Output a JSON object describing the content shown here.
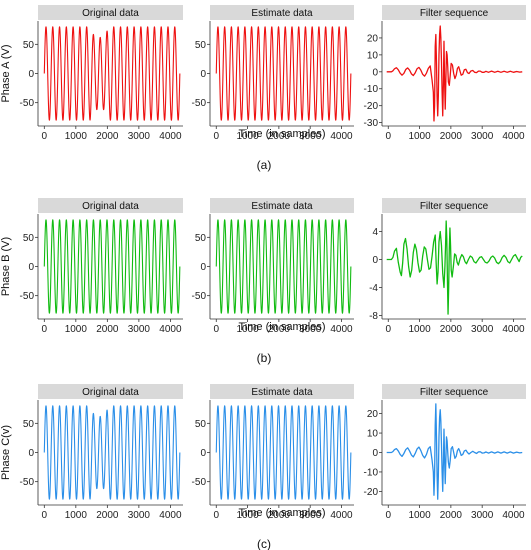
{
  "panel_titles": {
    "original": "Original data",
    "estimate": "Estimate data",
    "filter": "Filter sequence"
  },
  "x_axis": {
    "label": "Time  (in samples)",
    "ticks": [
      0,
      1000,
      2000,
      3000,
      4000
    ],
    "xlim": [
      -200,
      4400
    ]
  },
  "colors": {
    "phase_a": "#ee1111",
    "phase_b": "#11bb11",
    "phase_c": "#2b8fe8",
    "strip": "#d9d9d9"
  },
  "rows": [
    {
      "id": "a",
      "caption": "(a)",
      "ylabel": "Phase A (V)",
      "color_key": "phase_a"
    },
    {
      "id": "b",
      "caption": "(b)",
      "ylabel": "Phase B (V)",
      "color_key": "phase_b"
    },
    {
      "id": "c",
      "caption": "(c)",
      "ylabel": "Phase C(v)",
      "color_key": "phase_c"
    }
  ],
  "chart_data": [
    {
      "row": "a",
      "panel": "original",
      "type": "line",
      "title": "Original data",
      "xlabel": "",
      "ylabel": "Phase A (V)",
      "xlim": [
        -200,
        4400
      ],
      "ylim": [
        -90,
        90
      ],
      "yticks": [
        -50,
        0,
        50
      ],
      "signal": {
        "amplitude": 80,
        "cycles": 20,
        "samples": 4300,
        "dip": {
          "start": 1450,
          "end": 2050,
          "amplitude": 62
        }
      }
    },
    {
      "row": "a",
      "panel": "estimate",
      "type": "line",
      "title": "Estimate data",
      "xlabel": "Time  (in samples)",
      "ylabel": "",
      "xlim": [
        -200,
        4400
      ],
      "ylim": [
        -90,
        90
      ],
      "yticks": [
        -50,
        0,
        50
      ],
      "signal": {
        "amplitude": 80,
        "cycles": 20,
        "samples": 4300
      }
    },
    {
      "row": "a",
      "panel": "filter",
      "type": "line",
      "title": "Filter sequence",
      "xlabel": "",
      "ylabel": "",
      "xlim": [
        -200,
        4400
      ],
      "ylim": [
        -32,
        30
      ],
      "yticks": [
        -30,
        -20,
        -10,
        0,
        10,
        20
      ],
      "points": [
        [
          -50,
          0
        ],
        [
          100,
          0
        ],
        [
          150,
          0.6
        ],
        [
          200,
          1.8
        ],
        [
          260,
          2.4
        ],
        [
          320,
          1.2
        ],
        [
          380,
          -0.8
        ],
        [
          440,
          -2
        ],
        [
          500,
          -0.9
        ],
        [
          560,
          1.4
        ],
        [
          620,
          2.3
        ],
        [
          680,
          1
        ],
        [
          740,
          -1.2
        ],
        [
          800,
          -2.2
        ],
        [
          860,
          -0.6
        ],
        [
          920,
          1.8
        ],
        [
          980,
          2.6
        ],
        [
          1040,
          1
        ],
        [
          1100,
          -1.5
        ],
        [
          1160,
          -2.6
        ],
        [
          1220,
          -0.8
        ],
        [
          1280,
          2
        ],
        [
          1340,
          3.5
        ],
        [
          1400,
          -5
        ],
        [
          1440,
          -12
        ],
        [
          1460,
          -29
        ],
        [
          1480,
          -20
        ],
        [
          1500,
          15
        ],
        [
          1520,
          22
        ],
        [
          1540,
          6
        ],
        [
          1560,
          -15
        ],
        [
          1580,
          -26
        ],
        [
          1600,
          -14
        ],
        [
          1620,
          10
        ],
        [
          1640,
          22
        ],
        [
          1660,
          27
        ],
        [
          1680,
          20
        ],
        [
          1700,
          6
        ],
        [
          1720,
          -12
        ],
        [
          1740,
          -26
        ],
        [
          1760,
          -8
        ],
        [
          1780,
          18
        ],
        [
          1800,
          -6
        ],
        [
          1820,
          -22
        ],
        [
          1840,
          -5
        ],
        [
          1860,
          12
        ],
        [
          1880,
          10
        ],
        [
          1900,
          3
        ],
        [
          1920,
          -6
        ],
        [
          1950,
          -8
        ],
        [
          1980,
          -2
        ],
        [
          2010,
          5
        ],
        [
          2050,
          4
        ],
        [
          2090,
          -1
        ],
        [
          2130,
          -4
        ],
        [
          2170,
          -2
        ],
        [
          2210,
          2
        ],
        [
          2250,
          3
        ],
        [
          2290,
          0.5
        ],
        [
          2330,
          -2
        ],
        [
          2380,
          -1.5
        ],
        [
          2430,
          1.2
        ],
        [
          2480,
          1.5
        ],
        [
          2530,
          -0.5
        ],
        [
          2580,
          -1
        ],
        [
          2640,
          0.5
        ],
        [
          2700,
          0.8
        ],
        [
          2760,
          -0.3
        ],
        [
          2820,
          -0.5
        ],
        [
          2880,
          0.4
        ],
        [
          2940,
          0.4
        ],
        [
          3000,
          -0.3
        ],
        [
          3060,
          -0.3
        ],
        [
          3120,
          0.3
        ],
        [
          3200,
          -0.3
        ],
        [
          3300,
          0.4
        ],
        [
          3400,
          -0.3
        ],
        [
          3500,
          0.3
        ],
        [
          3600,
          -0.3
        ],
        [
          3700,
          0.3
        ],
        [
          3800,
          -0.3
        ],
        [
          3900,
          0.3
        ],
        [
          4000,
          -0.3
        ],
        [
          4100,
          0.2
        ],
        [
          4200,
          -0.2
        ],
        [
          4280,
          0
        ]
      ]
    },
    {
      "row": "b",
      "panel": "original",
      "type": "line",
      "title": "Original data",
      "xlabel": "",
      "ylabel": "Phase B (V)",
      "xlim": [
        -200,
        4400
      ],
      "ylim": [
        -90,
        90
      ],
      "yticks": [
        -50,
        0,
        50
      ],
      "signal": {
        "amplitude": 80,
        "cycles": 20,
        "samples": 4300
      }
    },
    {
      "row": "b",
      "panel": "estimate",
      "type": "line",
      "title": "Estimate data",
      "xlabel": "Time  (in samples)",
      "ylabel": "",
      "xlim": [
        -200,
        4400
      ],
      "ylim": [
        -90,
        90
      ],
      "yticks": [
        -50,
        0,
        50
      ],
      "signal": {
        "amplitude": 80,
        "cycles": 20,
        "samples": 4300
      }
    },
    {
      "row": "b",
      "panel": "filter",
      "type": "line",
      "title": "Filter sequence",
      "xlabel": "",
      "ylabel": "",
      "xlim": [
        -200,
        4400
      ],
      "ylim": [
        -8.5,
        6.5
      ],
      "yticks": [
        -8,
        -4,
        0,
        4
      ],
      "points": [
        [
          -50,
          0
        ],
        [
          100,
          0
        ],
        [
          150,
          0.3
        ],
        [
          200,
          1.2
        ],
        [
          260,
          1.6
        ],
        [
          320,
          -0.4
        ],
        [
          380,
          -1.8
        ],
        [
          420,
          -2.3
        ],
        [
          460,
          -0.5
        ],
        [
          500,
          2.2
        ],
        [
          550,
          3
        ],
        [
          600,
          1.5
        ],
        [
          650,
          -1
        ],
        [
          700,
          -2.5
        ],
        [
          750,
          -1.5
        ],
        [
          800,
          1
        ],
        [
          850,
          2.2
        ],
        [
          900,
          1.4
        ],
        [
          950,
          -0.5
        ],
        [
          1000,
          -1.8
        ],
        [
          1050,
          -1.5
        ],
        [
          1100,
          0.5
        ],
        [
          1150,
          1.8
        ],
        [
          1200,
          1.5
        ],
        [
          1250,
          0
        ],
        [
          1300,
          -1.4
        ],
        [
          1350,
          -1.2
        ],
        [
          1400,
          0.5
        ],
        [
          1450,
          2.5
        ],
        [
          1500,
          3.5
        ],
        [
          1530,
          -0.5
        ],
        [
          1560,
          -3.5
        ],
        [
          1590,
          -1.8
        ],
        [
          1620,
          2.5
        ],
        [
          1660,
          4
        ],
        [
          1700,
          2
        ],
        [
          1740,
          -2
        ],
        [
          1780,
          -4
        ],
        [
          1810,
          -1
        ],
        [
          1830,
          2
        ],
        [
          1850,
          5.5
        ],
        [
          1870,
          3
        ],
        [
          1890,
          -3
        ],
        [
          1910,
          -7.8
        ],
        [
          1930,
          -4
        ],
        [
          1950,
          1.5
        ],
        [
          1970,
          4.5
        ],
        [
          1990,
          2
        ],
        [
          2010,
          -1.5
        ],
        [
          2040,
          -2.5
        ],
        [
          2080,
          -1
        ],
        [
          2120,
          0.8
        ],
        [
          2160,
          0.6
        ],
        [
          2200,
          -0.4
        ],
        [
          2240,
          -0.8
        ],
        [
          2300,
          0.2
        ],
        [
          2350,
          0.7
        ],
        [
          2400,
          0.4
        ],
        [
          2450,
          -0.3
        ],
        [
          2500,
          -0.6
        ],
        [
          2560,
          0
        ],
        [
          2620,
          0.5
        ],
        [
          2680,
          0.3
        ],
        [
          2740,
          -0.3
        ],
        [
          2800,
          -0.5
        ],
        [
          2860,
          -0.1
        ],
        [
          2920,
          0.3
        ],
        [
          2980,
          0.4
        ],
        [
          3040,
          0
        ],
        [
          3100,
          -0.4
        ],
        [
          3160,
          -0.5
        ],
        [
          3220,
          -0.2
        ],
        [
          3280,
          0.3
        ],
        [
          3340,
          0.5
        ],
        [
          3400,
          0.2
        ],
        [
          3460,
          -0.4
        ],
        [
          3520,
          -0.6
        ],
        [
          3580,
          -0.3
        ],
        [
          3640,
          0.3
        ],
        [
          3700,
          0.6
        ],
        [
          3760,
          0.3
        ],
        [
          3820,
          -0.3
        ],
        [
          3880,
          -0.5
        ],
        [
          3940,
          0
        ],
        [
          4000,
          0.5
        ],
        [
          4060,
          0.7
        ],
        [
          4120,
          0.2
        ],
        [
          4180,
          -0.3
        ],
        [
          4230,
          0.3
        ],
        [
          4280,
          0.5
        ]
      ]
    },
    {
      "row": "c",
      "panel": "original",
      "type": "line",
      "title": "Original data",
      "xlabel": "",
      "ylabel": "Phase C(v)",
      "xlim": [
        -200,
        4400
      ],
      "ylim": [
        -90,
        90
      ],
      "yticks": [
        -50,
        0,
        50
      ],
      "signal": {
        "amplitude": 80,
        "cycles": 20,
        "samples": 4300,
        "dip": {
          "start": 1450,
          "end": 2050,
          "amplitude": 62
        }
      }
    },
    {
      "row": "c",
      "panel": "estimate",
      "type": "line",
      "title": "Estimate data",
      "xlabel": "Time  (in samples)",
      "ylabel": "",
      "xlim": [
        -200,
        4400
      ],
      "ylim": [
        -90,
        90
      ],
      "yticks": [
        -50,
        0,
        50
      ],
      "signal": {
        "amplitude": 80,
        "cycles": 20,
        "samples": 4300
      }
    },
    {
      "row": "c",
      "panel": "filter",
      "type": "line",
      "title": "Filter sequence",
      "xlabel": "",
      "ylabel": "",
      "xlim": [
        -200,
        4400
      ],
      "ylim": [
        -27,
        27
      ],
      "yticks": [
        -20,
        -10,
        0,
        10,
        20
      ],
      "points": [
        [
          -50,
          0
        ],
        [
          100,
          0
        ],
        [
          150,
          0.5
        ],
        [
          200,
          1.5
        ],
        [
          260,
          2
        ],
        [
          320,
          0.8
        ],
        [
          380,
          -1
        ],
        [
          440,
          -2
        ],
        [
          500,
          -0.5
        ],
        [
          560,
          1.5
        ],
        [
          620,
          2.4
        ],
        [
          680,
          0.8
        ],
        [
          740,
          -1.3
        ],
        [
          800,
          -2.3
        ],
        [
          860,
          -0.5
        ],
        [
          920,
          1.8
        ],
        [
          980,
          2.8
        ],
        [
          1040,
          1
        ],
        [
          1100,
          -1.5
        ],
        [
          1160,
          -2.8
        ],
        [
          1220,
          -1
        ],
        [
          1280,
          2
        ],
        [
          1340,
          3
        ],
        [
          1400,
          -4
        ],
        [
          1440,
          -10
        ],
        [
          1460,
          -22
        ],
        [
          1480,
          -12
        ],
        [
          1500,
          14
        ],
        [
          1520,
          25
        ],
        [
          1540,
          8
        ],
        [
          1560,
          -12
        ],
        [
          1580,
          -24
        ],
        [
          1600,
          -12
        ],
        [
          1620,
          8
        ],
        [
          1640,
          18
        ],
        [
          1660,
          22
        ],
        [
          1680,
          16
        ],
        [
          1700,
          4
        ],
        [
          1720,
          -10
        ],
        [
          1740,
          -20
        ],
        [
          1760,
          -6
        ],
        [
          1780,
          12
        ],
        [
          1800,
          -4
        ],
        [
          1820,
          -16
        ],
        [
          1840,
          -4
        ],
        [
          1860,
          8
        ],
        [
          1880,
          6
        ],
        [
          1900,
          0
        ],
        [
          1920,
          -5
        ],
        [
          1950,
          -8
        ],
        [
          1980,
          -4
        ],
        [
          2010,
          2
        ],
        [
          2050,
          3
        ],
        [
          2090,
          0
        ],
        [
          2130,
          -3
        ],
        [
          2170,
          -2
        ],
        [
          2210,
          1
        ],
        [
          2250,
          2
        ],
        [
          2290,
          0.5
        ],
        [
          2330,
          -1.5
        ],
        [
          2380,
          -1
        ],
        [
          2430,
          0.8
        ],
        [
          2480,
          1.2
        ],
        [
          2530,
          0
        ],
        [
          2580,
          -0.8
        ],
        [
          2640,
          0
        ],
        [
          2700,
          0.6
        ],
        [
          2760,
          0
        ],
        [
          2820,
          -0.5
        ],
        [
          2880,
          0.3
        ],
        [
          2940,
          0.4
        ],
        [
          3000,
          -0.3
        ],
        [
          3060,
          -0.2
        ],
        [
          3120,
          0.3
        ],
        [
          3200,
          -0.3
        ],
        [
          3300,
          0.3
        ],
        [
          3400,
          -0.3
        ],
        [
          3500,
          0.3
        ],
        [
          3600,
          -0.3
        ],
        [
          3700,
          0.3
        ],
        [
          3800,
          -0.3
        ],
        [
          3900,
          0.3
        ],
        [
          4000,
          -0.3
        ],
        [
          4100,
          0.2
        ],
        [
          4200,
          -0.2
        ],
        [
          4280,
          0
        ]
      ]
    }
  ]
}
